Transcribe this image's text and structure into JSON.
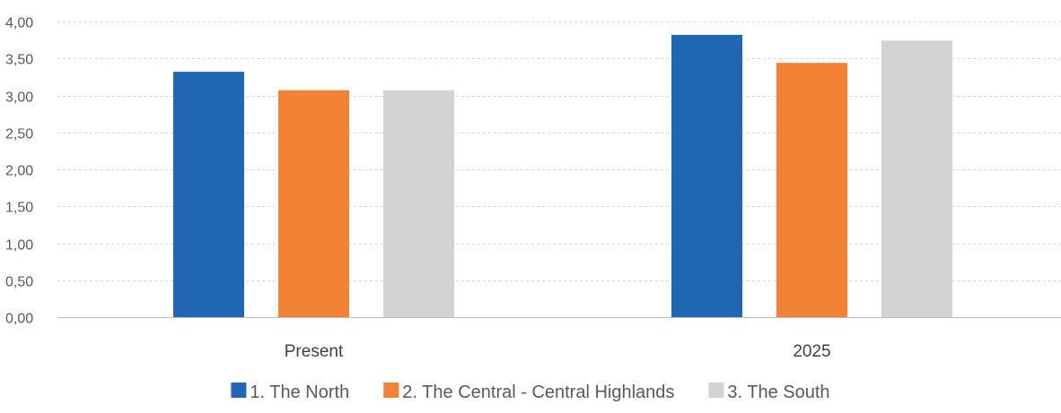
{
  "chart_data": {
    "type": "bar",
    "title": "",
    "xlabel": "",
    "ylabel": "",
    "categories": [
      "Present",
      "2025"
    ],
    "series": [
      {
        "name": "1. The North",
        "color": "#2166b3",
        "values": [
          3.32,
          3.82
        ]
      },
      {
        "name": "2. The Central - Central Highlands",
        "color": "#f28236",
        "values": [
          3.07,
          3.44
        ]
      },
      {
        "name": "3. The South",
        "color": "#d3d3d3",
        "values": [
          3.07,
          3.74
        ]
      }
    ],
    "ylim": [
      0,
      4
    ],
    "yticks": [
      0,
      0.5,
      1,
      1.5,
      2,
      2.5,
      3,
      3.5,
      4
    ],
    "ytick_labels": [
      "0,00",
      "0,50",
      "1,00",
      "1,50",
      "2,00",
      "2,50",
      "3,00",
      "3,50",
      "4,00"
    ],
    "grid": true,
    "legend_position": "bottom"
  }
}
